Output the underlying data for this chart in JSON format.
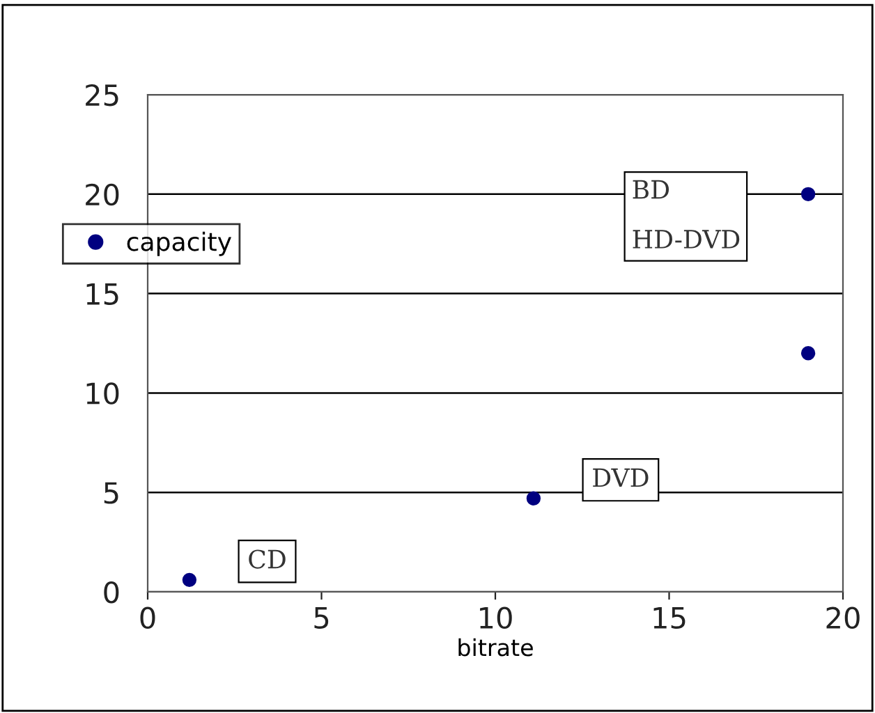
{
  "chart_data": {
    "type": "scatter",
    "xlabel": "bitrate",
    "series": [
      {
        "name": "capacity",
        "color": "#000080",
        "x": [
          1.2,
          11.1,
          19.0,
          19.0
        ],
        "values": [
          0.6,
          4.7,
          20,
          12
        ]
      }
    ],
    "xlim": [
      0,
      20
    ],
    "ylim": [
      0,
      25
    ],
    "xticks": [
      0,
      5,
      10,
      15,
      20
    ],
    "yticks": [
      0,
      5,
      10,
      15,
      20,
      25
    ],
    "grid": "y",
    "legend": "left",
    "marker": "circle",
    "annotations": [
      {
        "text": "CD",
        "x": 1.2,
        "y": 0.6
      },
      {
        "text": "DVD",
        "x": 11.1,
        "y": 4.7
      },
      "BD",
      "HD-DVD"
    ]
  }
}
